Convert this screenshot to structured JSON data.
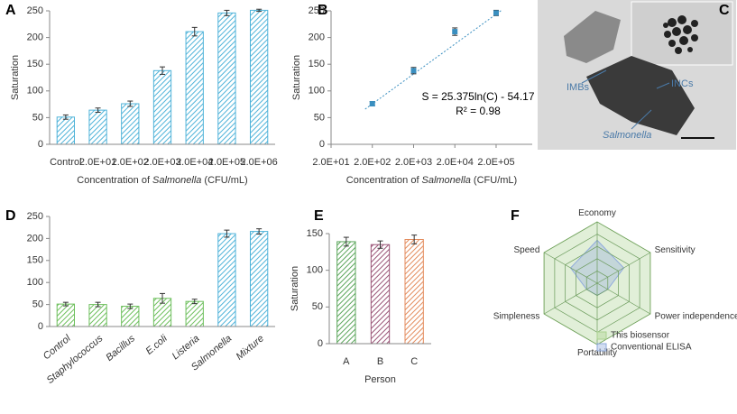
{
  "chart_data": [
    {
      "type": "bar",
      "panel_label": "A",
      "y_label": "Saturation",
      "x_label": [
        "Concentration of",
        "Salmonella",
        "(CFU/mL)"
      ],
      "categories": [
        "Control",
        "2.0E+01",
        "2.0E+02",
        "2.0E+03",
        "2.0E+04",
        "2.0E+05",
        "2.0E+06"
      ],
      "values": [
        51,
        64,
        76,
        138,
        211,
        246,
        251
      ],
      "errors": [
        4,
        4,
        5,
        7,
        8,
        5,
        2
      ],
      "color": "#4fb3d9",
      "ylim": [
        0,
        250
      ],
      "yticks": [
        0,
        50,
        100,
        150,
        200,
        250
      ]
    },
    {
      "type": "scatter",
      "panel_label": "B",
      "y_label": "Saturation",
      "x_label": [
        "Concentration of",
        "Salmonella",
        "(CFU/mL)"
      ],
      "log_x": true,
      "x": [
        200,
        2000,
        20000,
        200000
      ],
      "values": [
        76,
        138,
        211,
        246
      ],
      "errors": [
        4,
        6,
        7,
        5
      ],
      "color": "#3a8fc0",
      "xlim": [
        20,
        1500000
      ],
      "xticks": [
        {
          "value": 20,
          "label": "2.0E+01"
        },
        {
          "value": 200,
          "label": "2.0E+02"
        },
        {
          "value": 2000,
          "label": "2.0E+03"
        },
        {
          "value": 20000,
          "label": "2.0E+04"
        },
        {
          "value": 200000,
          "label": "2.0E+05"
        }
      ],
      "ylim": [
        0,
        250
      ],
      "yticks": [
        0,
        50,
        100,
        150,
        200,
        250
      ],
      "annotations": [
        "S = 25.375ln(C) - 54.17",
        "R² = 0.98"
      ]
    },
    {
      "type": "bar",
      "panel_label": "D",
      "categories": [
        "Control",
        "Staphylococcus",
        "Bacillus",
        "E.coli",
        "Listeria",
        "Salmonella",
        "Mixture"
      ],
      "values": [
        51,
        50,
        46,
        64,
        57,
        211,
        216
      ],
      "errors": [
        4,
        5,
        5,
        11,
        5,
        8,
        6
      ],
      "colors": [
        "#6dbf5c",
        "#6dbf5c",
        "#6dbf5c",
        "#6dbf5c",
        "#6dbf5c",
        "#4fb3d9",
        "#4fb3d9"
      ],
      "ylim": [
        0,
        250
      ],
      "yticks": [
        0,
        50,
        100,
        150,
        200,
        250
      ]
    },
    {
      "type": "bar",
      "panel_label": "E",
      "y_label": "Saturation",
      "x_label": "Person",
      "categories": [
        "A",
        "B",
        "C"
      ],
      "values": [
        139,
        135,
        142
      ],
      "errors": [
        6,
        5,
        6
      ],
      "colors": [
        "#5aa55a",
        "#9a5577",
        "#e38b5c"
      ],
      "ylim": [
        0,
        150
      ],
      "yticks": [
        0,
        50,
        100,
        150
      ]
    },
    {
      "type": "radar",
      "panel_label": "F",
      "categories": [
        "Economy",
        "Sensitivity",
        "Power independence",
        "Portability",
        "Simpleness",
        "Speed"
      ],
      "rlim": [
        0,
        5
      ],
      "rticks": [
        1,
        2,
        3,
        4,
        5
      ],
      "series": [
        {
          "name": "This biosensor",
          "color": "#a9d18e",
          "values": [
            5,
            5,
            5,
            5,
            5,
            5
          ]
        },
        {
          "name": "Conventional ELISA",
          "color": "#8faadc",
          "values": [
            3.5,
            2.5,
            1,
            1,
            1,
            2.5
          ]
        }
      ]
    }
  ],
  "panel_c": {
    "panel_label": "C",
    "labels": [
      "IMBs",
      "INCs",
      "Salmonella"
    ]
  }
}
